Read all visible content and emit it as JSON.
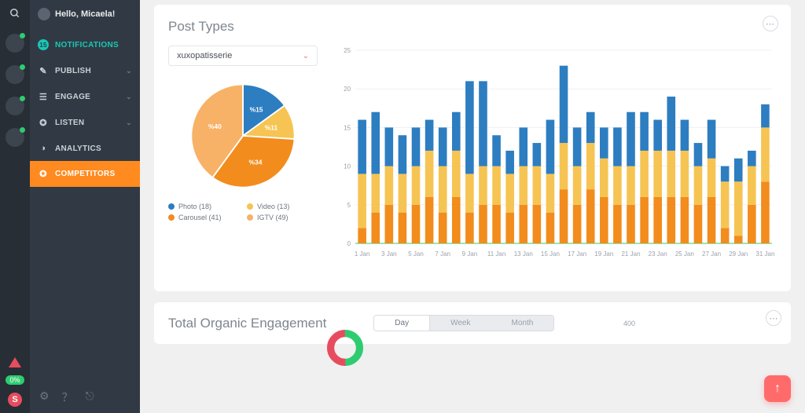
{
  "hello": "Hello, Micaela!",
  "rail": {
    "dot_colors": [
      "#2ecc71",
      "#2ecc71",
      "#2ecc71",
      "#2ecc71"
    ],
    "pct": "0%"
  },
  "nav": {
    "notif": {
      "label": "NOTIFICATIONS",
      "badge": "15",
      "color": "#18c8b6"
    },
    "items": [
      {
        "label": "PUBLISH",
        "ico": "✎"
      },
      {
        "label": "ENGAGE",
        "ico": "☰"
      },
      {
        "label": "LISTEN",
        "ico": "✪"
      },
      {
        "label": "ANALYTICS",
        "ico": "◑"
      }
    ],
    "active": {
      "label": "COMPETITORS",
      "ico": "✪"
    }
  },
  "post_types": {
    "title": "Post Types",
    "selected_account": "xuxopatisserie",
    "pie": {
      "slices": [
        {
          "label": "%15",
          "color": "#2d7dc1",
          "legend": "Photo (18)"
        },
        {
          "label": "%11",
          "color": "#f6c453",
          "legend": "Video (13)"
        },
        {
          "label": "%34",
          "color": "#f28c1c",
          "legend": "Carousel (41)"
        },
        {
          "label": "%40",
          "color": "#f7b267",
          "legend": "IGTV (49)"
        }
      ]
    },
    "bar_chart": {
      "type": "stacked-bar",
      "ylim": [
        0,
        25
      ],
      "ytick_step": 5,
      "x_labels": [
        "1 Jan",
        "3 Jan",
        "5 Jan",
        "7 Jan",
        "9 Jan",
        "11 Jan",
        "13 Jan",
        "15 Jan",
        "17 Jan",
        "19 Jan",
        "21 Jan",
        "23 Jan",
        "25 Jan",
        "27 Jan",
        "29 Jan",
        "31 Jan"
      ],
      "series_colors": {
        "bottom": "#f28c1c",
        "middle": "#f6c453",
        "top": "#2d7dc1"
      },
      "bars": [
        [
          2,
          7,
          7
        ],
        [
          4,
          5,
          8
        ],
        [
          5,
          5,
          5
        ],
        [
          4,
          5,
          5
        ],
        [
          5,
          5,
          5
        ],
        [
          6,
          6,
          4
        ],
        [
          4,
          6,
          5
        ],
        [
          6,
          6,
          5
        ],
        [
          4,
          5,
          12
        ],
        [
          5,
          5,
          11
        ],
        [
          5,
          5,
          4
        ],
        [
          4,
          5,
          3
        ],
        [
          5,
          5,
          5
        ],
        [
          5,
          5,
          3
        ],
        [
          4,
          5,
          7
        ],
        [
          7,
          6,
          10
        ],
        [
          5,
          5,
          5
        ],
        [
          7,
          6,
          4
        ],
        [
          6,
          5,
          4
        ],
        [
          5,
          5,
          5
        ],
        [
          5,
          5,
          7
        ],
        [
          6,
          6,
          5
        ],
        [
          6,
          6,
          4
        ],
        [
          6,
          6,
          7
        ],
        [
          6,
          6,
          4
        ],
        [
          5,
          5,
          3
        ],
        [
          6,
          5,
          5
        ],
        [
          2,
          6,
          2
        ],
        [
          1,
          7,
          3
        ],
        [
          5,
          5,
          2
        ],
        [
          8,
          7,
          3
        ]
      ],
      "grid_color": "#eef0f3",
      "baseline_color": "#2ecc71"
    }
  },
  "engagement": {
    "title": "Total Organic Engagement",
    "tabs": [
      "Day",
      "Week",
      "Month"
    ],
    "selected_tab": 0,
    "y_first": "400",
    "donut_colors": [
      "#2ecc71",
      "#e74c5e"
    ]
  }
}
